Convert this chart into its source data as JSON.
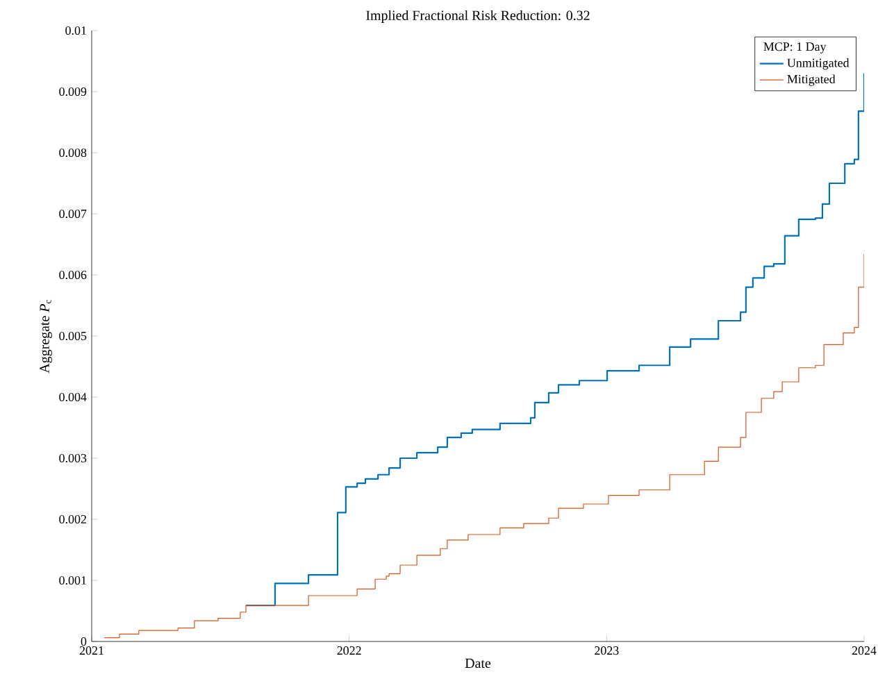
{
  "chart_data": {
    "type": "step",
    "title": "Implied Fractional Risk Reduction: 0.32",
    "xlabel": "Date",
    "ylabel": "Aggregate *P*$_{c}$",
    "legend_title": "MCP: 1 Day",
    "legend": "top right",
    "grid": false,
    "xlim": [
      2021,
      2024
    ],
    "xticks": [
      2021,
      2022,
      2023,
      2024
    ],
    "ylim": [
      0,
      0.01
    ],
    "yticks": [
      0,
      0.001,
      0.002,
      0.003,
      0.004,
      0.005,
      0.006,
      0.007,
      0.008,
      0.009,
      0.01
    ],
    "series": [
      {
        "name": "Unmitigated",
        "color": "#0072bd",
        "x": [
          2021.599,
          2021.712,
          2021.842,
          2021.955,
          2021.987,
          2022.031,
          2022.063,
          2022.112,
          2022.155,
          2022.198,
          2022.263,
          2022.344,
          2022.381,
          2022.435,
          2022.478,
          2022.586,
          2022.705,
          2022.721,
          2022.775,
          2022.813,
          2022.894,
          2023.002,
          2023.126,
          2023.245,
          2023.326,
          2023.434,
          2023.52,
          2023.541,
          2023.568,
          2023.612,
          2023.649,
          2023.692,
          2023.746,
          2023.811,
          2023.838,
          2023.865,
          2023.925,
          2023.962,
          2023.978,
          2024.0
        ],
        "values": [
          0.00059,
          0.00095,
          0.00109,
          0.00211,
          0.00253,
          0.00259,
          0.00266,
          0.00273,
          0.00284,
          0.003,
          0.00309,
          0.00318,
          0.00334,
          0.00341,
          0.00347,
          0.00357,
          0.00366,
          0.00391,
          0.00407,
          0.0042,
          0.00427,
          0.00443,
          0.00452,
          0.00482,
          0.00495,
          0.00525,
          0.00539,
          0.0058,
          0.00595,
          0.00614,
          0.00618,
          0.00664,
          0.00691,
          0.00693,
          0.00716,
          0.0075,
          0.00782,
          0.00789,
          0.00868,
          0.0093
        ]
      },
      {
        "name": "Mitigated",
        "color": "#d95319",
        "x": [
          2021.049,
          2021.108,
          2021.183,
          2021.335,
          2021.399,
          2021.491,
          2021.577,
          2021.599,
          2021.842,
          2022.031,
          2022.101,
          2022.144,
          2022.155,
          2022.198,
          2022.263,
          2022.354,
          2022.381,
          2022.462,
          2022.586,
          2022.678,
          2022.775,
          2022.813,
          2022.91,
          2023.007,
          2023.126,
          2023.245,
          2023.38,
          2023.434,
          2023.52,
          2023.541,
          2023.601,
          2023.649,
          2023.682,
          2023.746,
          2023.811,
          2023.844,
          2023.919,
          2023.962,
          2023.978,
          2024.0
        ],
        "values": [
          6e-05,
          0.00012,
          0.00018,
          0.00022,
          0.00034,
          0.00038,
          0.00048,
          0.00059,
          0.00075,
          0.00086,
          0.00102,
          0.00107,
          0.00111,
          0.00125,
          0.00141,
          0.00152,
          0.00166,
          0.00175,
          0.00186,
          0.00193,
          0.00202,
          0.00218,
          0.00225,
          0.00239,
          0.00248,
          0.00273,
          0.00295,
          0.00318,
          0.00334,
          0.00375,
          0.00398,
          0.00409,
          0.00425,
          0.00448,
          0.00452,
          0.00486,
          0.00505,
          0.00514,
          0.0058,
          0.00634
        ]
      }
    ]
  }
}
